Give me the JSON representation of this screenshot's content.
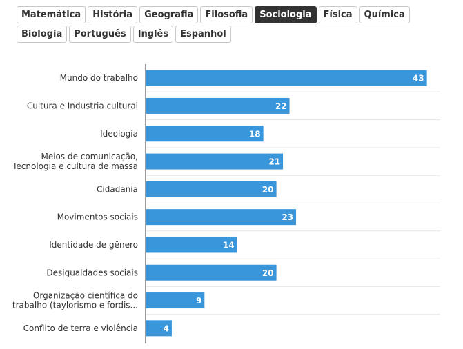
{
  "tabs": {
    "row1": [
      "Matemática",
      "História",
      "Geografia",
      "Filosofia",
      "Sociologia",
      "Física",
      "Química"
    ],
    "row2": [
      "Biologia",
      "Português",
      "Inglês",
      "Espanhol"
    ],
    "active": "Sociologia"
  },
  "colors": {
    "bar": "#3a96db",
    "axis": "#333333",
    "grid": "#e6e6e6",
    "active_tab": "#333333"
  },
  "chart_data": {
    "type": "bar",
    "orientation": "horizontal",
    "categories": [
      [
        "Mundo do trabalho"
      ],
      [
        "Cultura e Industria cultural"
      ],
      [
        "Ideologia"
      ],
      [
        "Meios de comunicação,",
        "Tecnologia e cultura de massa"
      ],
      [
        "Cidadania"
      ],
      [
        "Movimentos sociais"
      ],
      [
        "Identidade de gênero"
      ],
      [
        "Desigualdades sociais"
      ],
      [
        "Organização científica do",
        "trabalho (taylorismo e fordis..."
      ],
      [
        "Conflito de terra e violência"
      ]
    ],
    "values": [
      43,
      22,
      18,
      21,
      20,
      23,
      14,
      20,
      9,
      4
    ],
    "data_labels": true,
    "grid": true
  }
}
